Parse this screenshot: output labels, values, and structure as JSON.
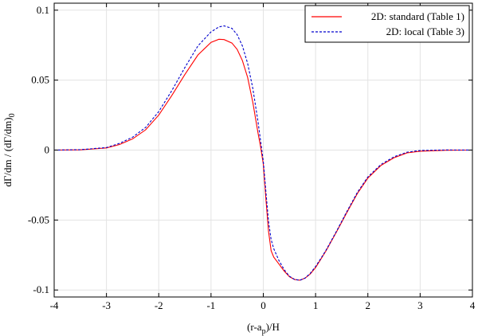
{
  "chart_data": {
    "type": "line",
    "title": "",
    "xlabel_base": "(r-a",
    "xlabel_sub": "p",
    "xlabel_tail": ")/H",
    "ylabel_main": "dΓ/dm / (dΓ/dm)",
    "ylabel_sub": "0",
    "xlim": [
      -4,
      4
    ],
    "ylim": [
      -0.105,
      0.105
    ],
    "xticks": [
      -4,
      -3,
      -2,
      -1,
      0,
      1,
      2,
      3,
      4
    ],
    "xtick_labels": [
      "-4",
      "-3",
      "-2",
      "-1",
      "0",
      "1",
      "2",
      "3",
      "4"
    ],
    "yticks": [
      -0.1,
      -0.05,
      0,
      0.05,
      0.1
    ],
    "ytick_labels": [
      "-0.1",
      "-0.05",
      "0",
      "0.05",
      "0.1"
    ],
    "grid": true,
    "legend_position": "top-right",
    "series": [
      {
        "name": "2D: standard (Table 1)",
        "color": "#ff0000",
        "dash": "solid",
        "x": [
          -4.0,
          -3.5,
          -3.0,
          -2.75,
          -2.5,
          -2.25,
          -2.0,
          -1.75,
          -1.5,
          -1.25,
          -1.0,
          -0.85,
          -0.75,
          -0.6,
          -0.5,
          -0.4,
          -0.3,
          -0.2,
          -0.1,
          -0.05,
          0.0,
          0.05,
          0.1,
          0.15,
          0.2,
          0.3,
          0.4,
          0.5,
          0.6,
          0.7,
          0.8,
          0.9,
          1.0,
          1.1,
          1.2,
          1.4,
          1.6,
          1.8,
          2.0,
          2.25,
          2.5,
          2.75,
          3.0,
          3.5,
          4.0
        ],
        "y": [
          0.0,
          0.0002,
          0.0015,
          0.004,
          0.008,
          0.0145,
          0.025,
          0.039,
          0.054,
          0.068,
          0.077,
          0.0792,
          0.079,
          0.0765,
          0.072,
          0.064,
          0.052,
          0.034,
          0.012,
          0.002,
          -0.01,
          -0.035,
          -0.058,
          -0.072,
          -0.0765,
          -0.0815,
          -0.0865,
          -0.0905,
          -0.0925,
          -0.093,
          -0.0915,
          -0.0885,
          -0.084,
          -0.078,
          -0.072,
          -0.0585,
          -0.0445,
          -0.031,
          -0.02,
          -0.011,
          -0.0055,
          -0.002,
          -0.0008,
          -0.0001,
          0.0
        ]
      },
      {
        "name": "2D: local (Table 3)",
        "color": "#0000cc",
        "dash": "dashed",
        "x": [
          -4.0,
          -3.5,
          -3.0,
          -2.75,
          -2.5,
          -2.25,
          -2.0,
          -1.75,
          -1.5,
          -1.25,
          -1.0,
          -0.85,
          -0.75,
          -0.6,
          -0.5,
          -0.4,
          -0.3,
          -0.2,
          -0.1,
          -0.05,
          0.0,
          0.05,
          0.1,
          0.15,
          0.2,
          0.3,
          0.4,
          0.5,
          0.6,
          0.7,
          0.8,
          0.9,
          1.0,
          1.1,
          1.2,
          1.4,
          1.6,
          1.8,
          2.0,
          2.25,
          2.5,
          2.75,
          3.0,
          3.5,
          4.0
        ],
        "y": [
          0.0,
          0.0003,
          0.0018,
          0.0048,
          0.0092,
          0.0162,
          0.0275,
          0.0425,
          0.059,
          0.0745,
          0.0845,
          0.088,
          0.0888,
          0.087,
          0.0825,
          0.0745,
          0.062,
          0.044,
          0.02,
          0.006,
          -0.008,
          -0.03,
          -0.051,
          -0.064,
          -0.0705,
          -0.079,
          -0.0855,
          -0.0902,
          -0.0925,
          -0.093,
          -0.0915,
          -0.088,
          -0.0832,
          -0.0775,
          -0.0715,
          -0.058,
          -0.0438,
          -0.0302,
          -0.0192,
          -0.0103,
          -0.0048,
          -0.0015,
          -0.0003,
          0.0001,
          0.0
        ]
      }
    ]
  }
}
